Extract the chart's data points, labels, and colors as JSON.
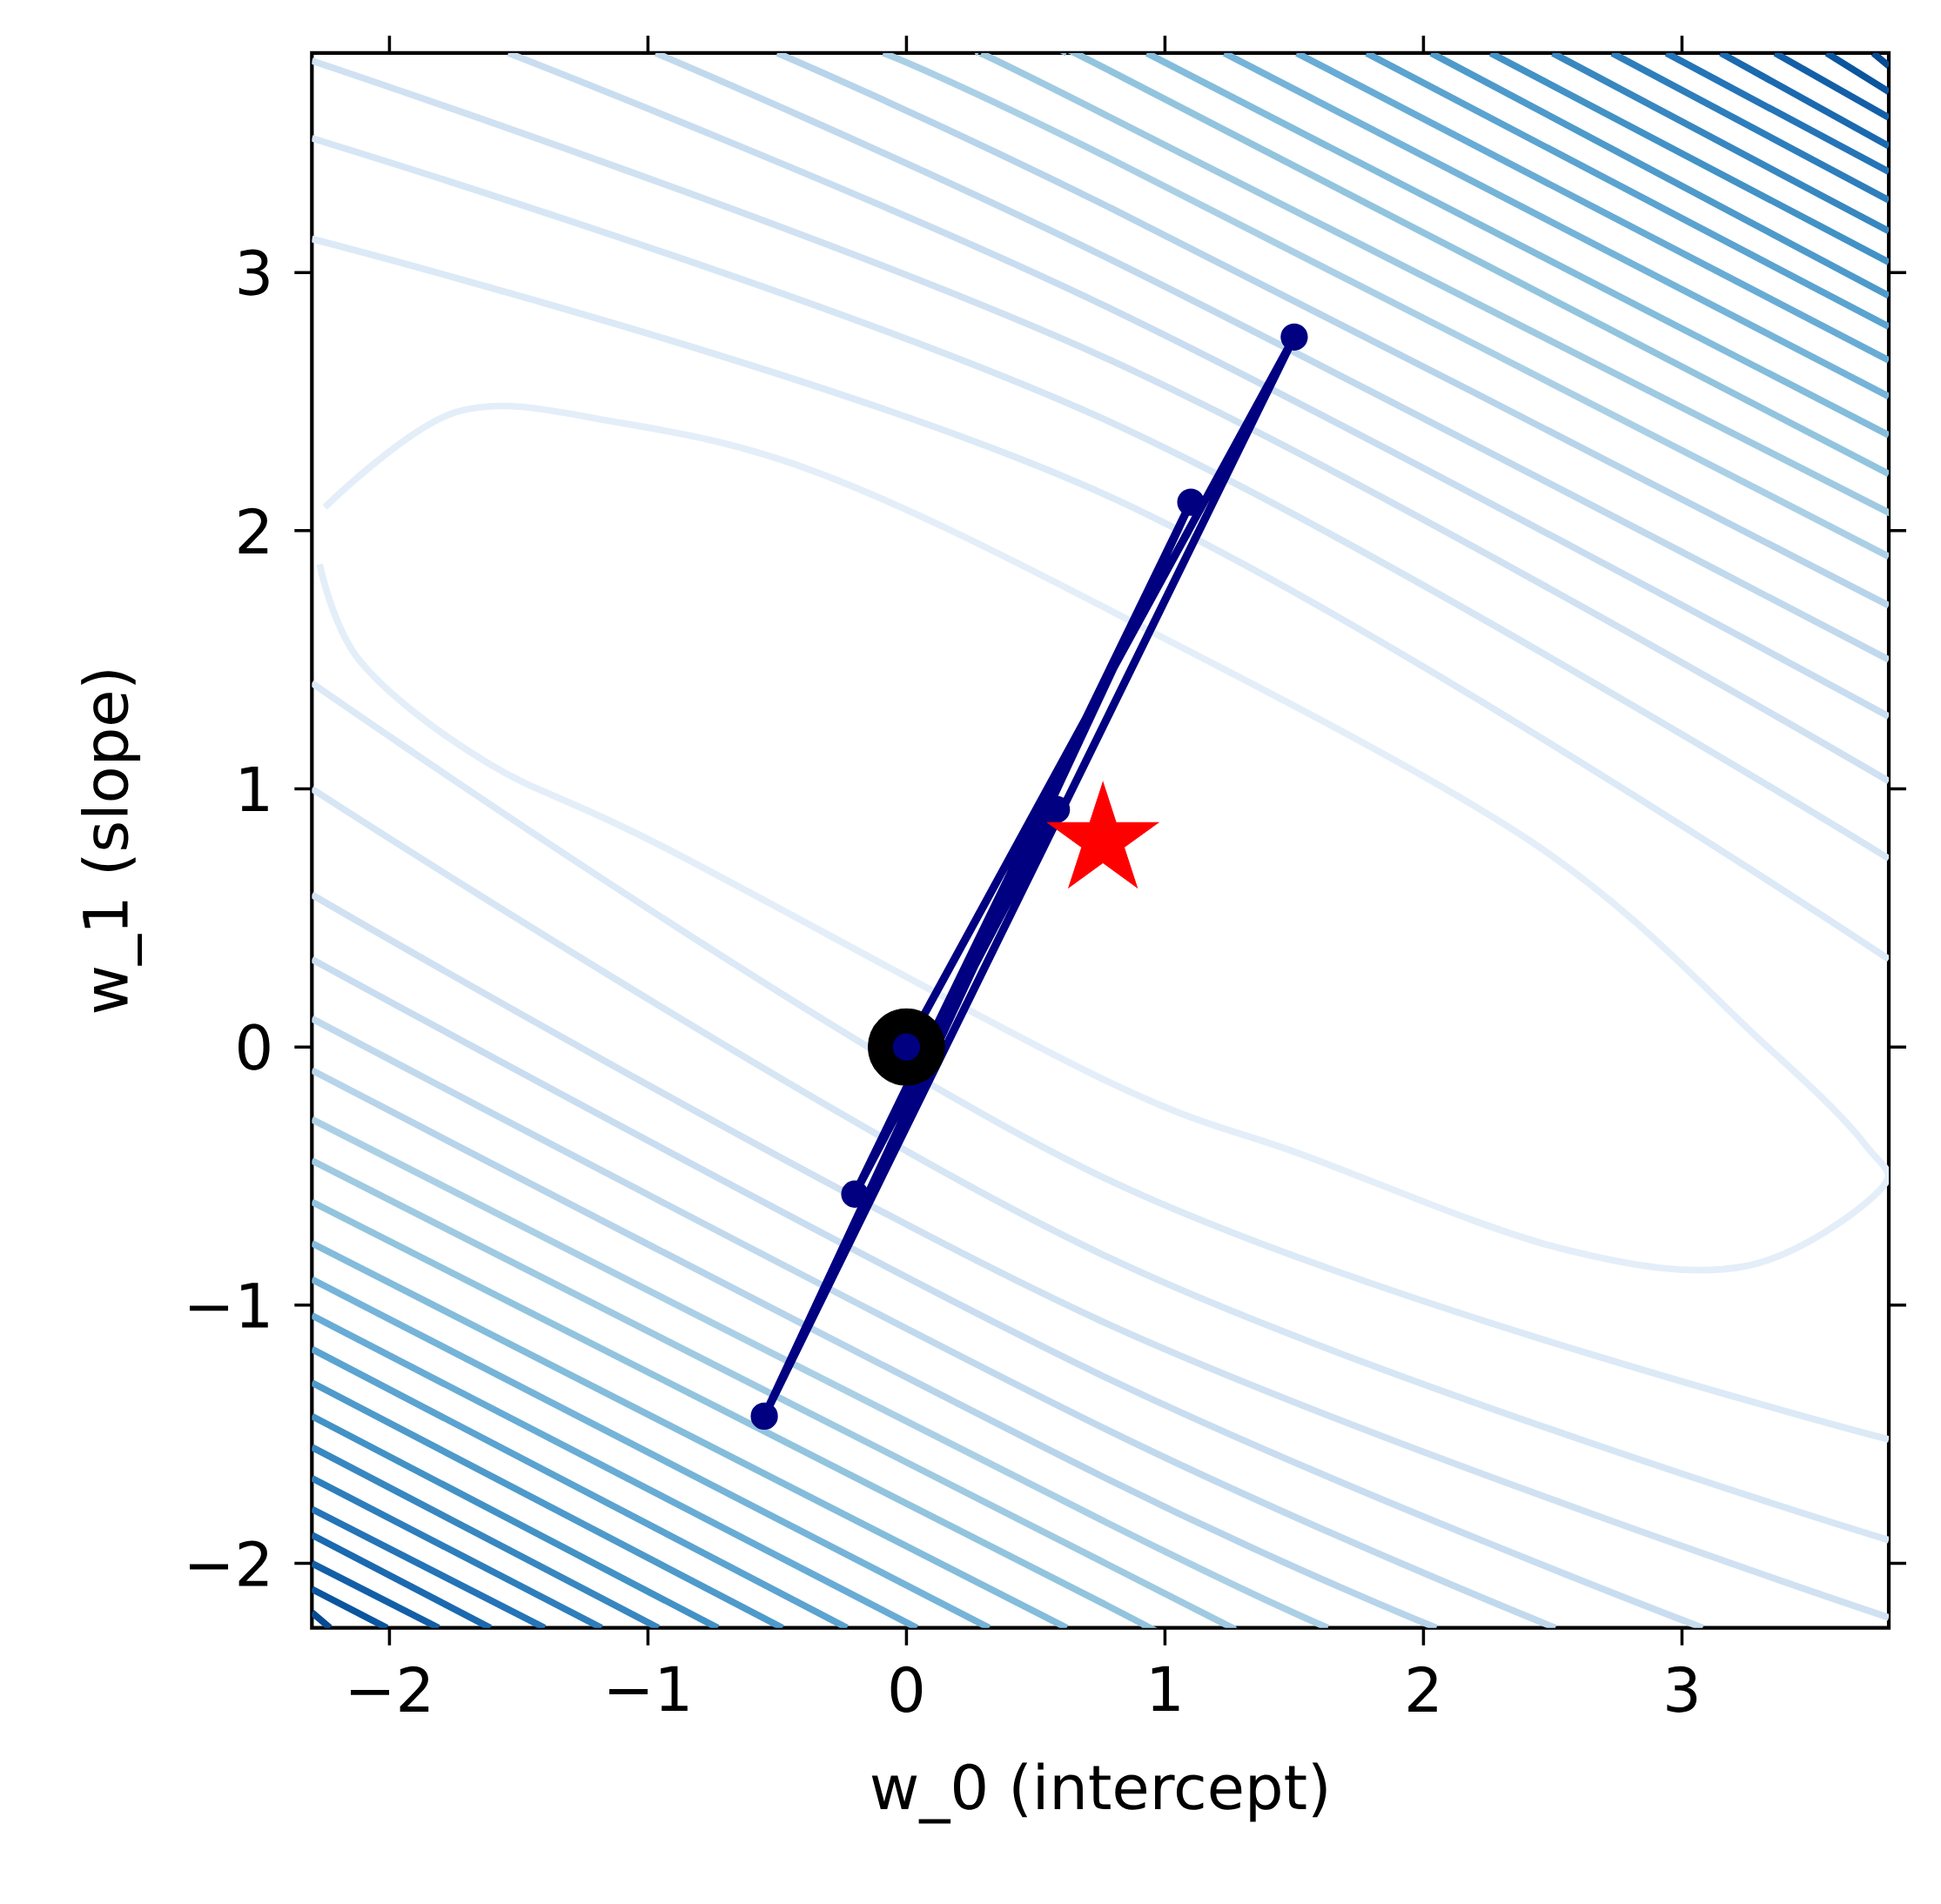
{
  "chart_data": {
    "type": "line",
    "xlabel": "w_0 (intercept)",
    "ylabel": "w_1 (slope)",
    "xlim": [
      -2.3,
      3.8
    ],
    "ylim": [
      -2.25,
      3.85
    ],
    "xticks": [
      {
        "value": -2,
        "label": "−2"
      },
      {
        "value": -1,
        "label": "−1"
      },
      0,
      1,
      2,
      3
    ],
    "yticks": [
      {
        "value": -2,
        "label": "−2"
      },
      {
        "value": -1,
        "label": "−1"
      },
      0,
      1,
      2,
      3
    ],
    "series": [
      {
        "color": "#e3eef9",
        "x": [
          -2.25,
          -1.74,
          -1.12,
          -0.33,
          0.79,
          2.41,
          3.32,
          3.71,
          3.76,
          3.24,
          2.53,
          1.54,
          0.75,
          -0.93,
          -1.62,
          -2.11,
          -2.27
        ],
        "values": [
          2.09,
          2.46,
          2.42,
          2.22,
          1.69,
          0.8,
          0.01,
          -0.38,
          -0.56,
          -0.85,
          -0.78,
          -0.42,
          -0.12,
          0.77,
          1.1,
          1.49,
          1.87
        ]
      },
      {
        "color": "#dce9f6",
        "x": [
          -2.3,
          0.79,
          3.8
        ],
        "values": [
          3.13,
          2.13,
          0.34
        ]
      },
      {
        "color": "#d6e6f4",
        "x": [
          -2.3,
          0.79,
          3.8
        ],
        "values": [
          3.52,
          2.42,
          0.73
        ]
      },
      {
        "color": "#d0e1f2",
        "x": [
          -2.3,
          0.79,
          3.8
        ],
        "values": [
          3.82,
          2.66,
          1.03
        ]
      },
      {
        "color": "#c9ddf0",
        "x": [
          -1.54,
          0.79,
          3.8
        ],
        "values": [
          3.85,
          2.86,
          1.28
        ]
      },
      {
        "color": "#c1d9ed",
        "x": [
          -0.97,
          0.79,
          3.8
        ],
        "values": [
          3.85,
          3.05,
          1.5
        ]
      },
      {
        "color": "#b7d4ea",
        "x": [
          -0.5,
          0.79,
          3.8
        ],
        "values": [
          3.85,
          3.25,
          1.71
        ]
      },
      {
        "color": "#abd0e6",
        "x": [
          -0.09,
          0.79,
          3.8
        ],
        "values": [
          3.85,
          3.44,
          1.9
        ]
      },
      {
        "color": "#9fcae1",
        "x": [
          0.28,
          0.79,
          3.8
        ],
        "values": [
          3.85,
          3.6,
          2.07
        ]
      },
      {
        "color": "#92c4de",
        "x": [
          0.62,
          0.79,
          3.8
        ],
        "values": [
          3.85,
          3.78,
          2.22
        ]
      },
      {
        "color": "#84bcdb",
        "x": [
          0.93,
          3.8
        ],
        "values": [
          3.85,
          2.37
        ]
      },
      {
        "color": "#75b4d8",
        "x": [
          1.23,
          3.8
        ],
        "values": [
          3.85,
          2.52
        ]
      },
      {
        "color": "#68acd5",
        "x": [
          1.51,
          3.8
        ],
        "values": [
          3.85,
          2.66
        ]
      },
      {
        "color": "#5ba3d0",
        "x": [
          1.78,
          3.8
        ],
        "values": [
          3.85,
          2.79
        ]
      },
      {
        "color": "#4e9acb",
        "x": [
          2.03,
          3.8
        ],
        "values": [
          3.85,
          2.91
        ]
      },
      {
        "color": "#4292c6",
        "x": [
          2.26,
          3.8
        ],
        "values": [
          3.85,
          3.04
        ]
      },
      {
        "color": "#3887c0",
        "x": [
          2.5,
          3.8
        ],
        "values": [
          3.85,
          3.16
        ]
      },
      {
        "color": "#2e7ebc",
        "x": [
          2.73,
          3.8
        ],
        "values": [
          3.85,
          3.28
        ]
      },
      {
        "color": "#2474b7",
        "x": [
          2.94,
          3.8
        ],
        "values": [
          3.85,
          3.39
        ]
      },
      {
        "color": "#1b69af",
        "x": [
          3.15,
          3.8
        ],
        "values": [
          3.85,
          3.49
        ]
      },
      {
        "color": "#135fa7",
        "x": [
          3.36,
          3.8
        ],
        "values": [
          3.85,
          3.6
        ]
      },
      {
        "color": "#0b559f",
        "x": [
          3.56,
          3.8
        ],
        "values": [
          3.85,
          3.7
        ]
      },
      {
        "color": "#084a91",
        "x": [
          3.74,
          3.8
        ],
        "values": [
          3.85,
          3.8
        ]
      },
      {
        "color": "#dce9f6",
        "x": [
          -2.3,
          0.75,
          3.8
        ],
        "values": [
          1.41,
          -0.5,
          -1.52
        ]
      },
      {
        "color": "#d6e6f4",
        "x": [
          -2.3,
          0.75,
          3.8
        ],
        "values": [
          1.0,
          -0.8,
          -1.91
        ]
      },
      {
        "color": "#d0e1f2",
        "x": [
          -2.3,
          0.75,
          3.8
        ],
        "values": [
          0.59,
          -1.06,
          -2.21
        ]
      },
      {
        "color": "#c9ddf0",
        "x": [
          -2.3,
          0.75,
          3.08
        ],
        "values": [
          0.34,
          -1.27,
          -2.25
        ]
      },
      {
        "color": "#c1d9ed",
        "x": [
          -2.3,
          0.75,
          2.51
        ],
        "values": [
          0.11,
          -1.47,
          -2.25
        ]
      },
      {
        "color": "#b7d4ea",
        "x": [
          -2.3,
          0.75,
          2.05
        ],
        "values": [
          -0.09,
          -1.66,
          -2.25
        ]
      },
      {
        "color": "#abd0e6",
        "x": [
          -2.3,
          0.75,
          1.63
        ],
        "values": [
          -0.28,
          -1.83,
          -2.25
        ]
      },
      {
        "color": "#9fcae1",
        "x": [
          -2.3,
          0.75,
          1.26
        ],
        "values": [
          -0.44,
          -1.99,
          -2.25
        ]
      },
      {
        "color": "#92c4de",
        "x": [
          -2.3,
          0.75,
          0.91
        ],
        "values": [
          -0.6,
          -2.15,
          -2.25
        ]
      },
      {
        "color": "#84bcdb",
        "x": [
          -2.3,
          0.62
        ],
        "values": [
          -0.76,
          -2.25
        ]
      },
      {
        "color": "#75b4d8",
        "x": [
          -2.3,
          0.32
        ],
        "values": [
          -0.9,
          -2.25
        ]
      },
      {
        "color": "#68acd5",
        "x": [
          -2.3,
          0.04
        ],
        "values": [
          -1.04,
          -2.25
        ]
      },
      {
        "color": "#5ba3d0",
        "x": [
          -2.3,
          -0.23
        ],
        "values": [
          -1.17,
          -2.25
        ]
      },
      {
        "color": "#4e9acb",
        "x": [
          -2.3,
          -0.48
        ],
        "values": [
          -1.3,
          -2.25
        ]
      },
      {
        "color": "#4292c6",
        "x": [
          -2.3,
          -0.73
        ],
        "values": [
          -1.43,
          -2.25
        ]
      },
      {
        "color": "#3887c0",
        "x": [
          -2.3,
          -0.96
        ],
        "values": [
          -1.55,
          -2.25
        ]
      },
      {
        "color": "#2e7ebc",
        "x": [
          -2.3,
          -1.18
        ],
        "values": [
          -1.67,
          -2.25
        ]
      },
      {
        "color": "#2474b7",
        "x": [
          -2.3,
          -1.4
        ],
        "values": [
          -1.79,
          -2.25
        ]
      },
      {
        "color": "#1b69af",
        "x": [
          -2.3,
          -1.61
        ],
        "values": [
          -1.89,
          -2.25
        ]
      },
      {
        "color": "#135fa7",
        "x": [
          -2.3,
          -1.81
        ],
        "values": [
          -2.0,
          -2.25
        ]
      },
      {
        "color": "#0b559f",
        "x": [
          -2.3,
          -2.01
        ],
        "values": [
          -2.1,
          -2.25
        ]
      },
      {
        "color": "#084a91",
        "x": [
          -2.3,
          -2.23
        ],
        "values": [
          -2.19,
          -2.25
        ]
      },
      {
        "type": "scatter",
        "marker": "circle",
        "color": "#000000",
        "x": [
          0
        ],
        "values": [
          0
        ]
      },
      {
        "color": "#000080",
        "marker": "circle",
        "x": [
          0,
          1.5,
          -0.55,
          1.1,
          -0.2,
          0.58
        ],
        "values": [
          0,
          2.75,
          -1.43,
          2.11,
          -0.57,
          0.92
        ]
      },
      {
        "type": "scatter",
        "marker": "star",
        "color": "#ff0000",
        "x": [
          0.76
        ],
        "values": [
          0.8
        ]
      }
    ]
  }
}
